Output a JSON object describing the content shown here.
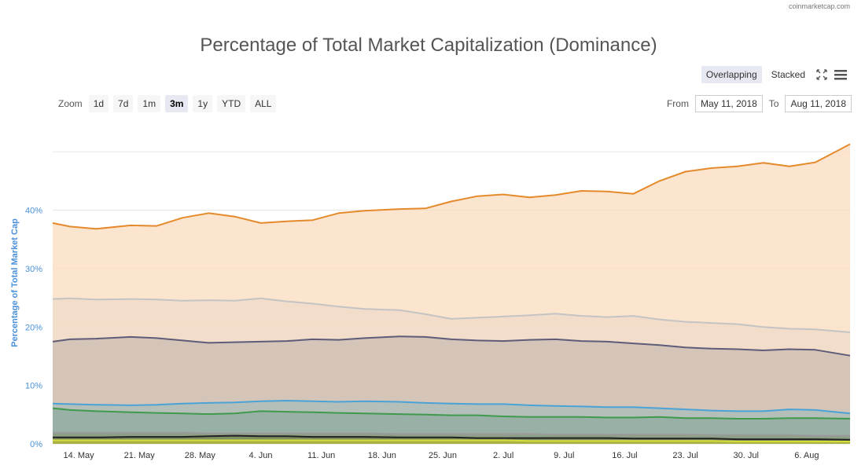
{
  "credit": "coinmarketcap.com",
  "view_modes": {
    "overlapping": "Overlapping",
    "stacked": "Stacked"
  },
  "icons": {
    "fullscreen": "fullscreen-icon",
    "menu": "hamburger-menu-icon"
  },
  "zoom": {
    "label": "Zoom",
    "options": [
      "1d",
      "7d",
      "1m",
      "3m",
      "1y",
      "YTD",
      "ALL"
    ],
    "selected": "3m"
  },
  "date_range": {
    "from_label": "From",
    "from_value": "May 11, 2018",
    "to_label": "To",
    "to_value": "Aug 11, 2018"
  },
  "colors": {
    "s0_line": "#e58a2c",
    "s0_fill": "#fbdcbd",
    "s1_line": "#c4c4c4",
    "s1_fill": "#eed9c7",
    "s2_line": "#5f5c7a",
    "s2_fill": "#cbbbb1",
    "s3_line": "#4aa3d6",
    "s3_fill": "#a9bdbb",
    "s4_line": "#3f9a4d",
    "s4_fill": "#8fab9e",
    "s5_line": "#9a9a9a",
    "s5_fill": "#8a9a7c",
    "s6_line": "#222222",
    "s6_fill": "#7a8a55",
    "s7_line": "#d6dc3a",
    "s7_fill": "#b8be3c",
    "grid": "#e6e6e6",
    "axis_text": "#4a90d9",
    "tick_text": "#333333"
  },
  "chart_data": {
    "type": "area",
    "title": "Percentage of Total Market Capitalization (Dominance)",
    "ylabel": "Percentage of Total Market Cap",
    "xlabel": "",
    "x_range": [
      "2018-05-11",
      "2018-08-11"
    ],
    "ylim": [
      0,
      55
    ],
    "y_ticks": [
      0,
      10,
      20,
      30,
      40
    ],
    "y_tick_labels": [
      "0%",
      "10%",
      "20%",
      "30%",
      "40%"
    ],
    "x_ticks": [
      "2018-05-14",
      "2018-05-21",
      "2018-05-28",
      "2018-06-04",
      "2018-06-11",
      "2018-06-18",
      "2018-06-25",
      "2018-07-02",
      "2018-07-09",
      "2018-07-16",
      "2018-07-23",
      "2018-07-30",
      "2018-08-06"
    ],
    "x_tick_labels": [
      "14. May",
      "21. May",
      "28. May",
      "4. Jun",
      "11. Jun",
      "18. Jun",
      "25. Jun",
      "2. Jul",
      "9. Jul",
      "16. Jul",
      "23. Jul",
      "30. Jul",
      "6. Aug"
    ],
    "grid": true,
    "legend": "none",
    "x": [
      "2018-05-11",
      "2018-05-13",
      "2018-05-16",
      "2018-05-20",
      "2018-05-23",
      "2018-05-26",
      "2018-05-29",
      "2018-06-01",
      "2018-06-04",
      "2018-06-07",
      "2018-06-10",
      "2018-06-13",
      "2018-06-16",
      "2018-06-20",
      "2018-06-23",
      "2018-06-26",
      "2018-06-29",
      "2018-07-02",
      "2018-07-05",
      "2018-07-08",
      "2018-07-11",
      "2018-07-14",
      "2018-07-17",
      "2018-07-20",
      "2018-07-23",
      "2018-07-26",
      "2018-07-29",
      "2018-08-01",
      "2018-08-04",
      "2018-08-07",
      "2018-08-11"
    ],
    "series": [
      {
        "values": [
          37.8,
          37.2,
          36.8,
          37.4,
          37.3,
          38.7,
          39.5,
          38.9,
          37.8,
          38.1,
          38.3,
          39.5,
          39.9,
          40.2,
          40.3,
          41.5,
          42.4,
          42.7,
          42.2,
          42.6,
          43.3,
          43.2,
          42.8,
          45.0,
          46.6,
          47.2,
          47.5,
          48.1,
          47.5,
          48.2,
          51.3
        ]
      },
      {
        "values": [
          24.8,
          24.9,
          24.7,
          24.8,
          24.7,
          24.5,
          24.6,
          24.5,
          24.9,
          24.4,
          24.0,
          23.5,
          23.1,
          22.9,
          22.2,
          21.4,
          21.6,
          21.8,
          22.0,
          22.3,
          21.9,
          21.7,
          21.9,
          21.3,
          20.9,
          20.7,
          20.5,
          20.0,
          19.7,
          19.6,
          19.1
        ]
      },
      {
        "values": [
          17.5,
          17.9,
          18.0,
          18.3,
          18.1,
          17.7,
          17.3,
          17.4,
          17.5,
          17.6,
          17.9,
          17.8,
          18.1,
          18.4,
          18.3,
          17.9,
          17.7,
          17.6,
          17.8,
          17.9,
          17.6,
          17.5,
          17.2,
          16.9,
          16.5,
          16.3,
          16.2,
          16.0,
          16.2,
          16.1,
          15.1
        ]
      },
      {
        "values": [
          6.9,
          6.8,
          6.7,
          6.6,
          6.7,
          6.9,
          7.0,
          7.1,
          7.3,
          7.4,
          7.3,
          7.2,
          7.3,
          7.2,
          7.0,
          6.9,
          6.8,
          6.8,
          6.6,
          6.5,
          6.4,
          6.3,
          6.3,
          6.1,
          5.9,
          5.7,
          5.6,
          5.6,
          5.9,
          5.8,
          5.2
        ]
      },
      {
        "values": [
          6.1,
          5.8,
          5.6,
          5.4,
          5.3,
          5.2,
          5.1,
          5.2,
          5.6,
          5.5,
          5.4,
          5.3,
          5.2,
          5.1,
          5.0,
          4.9,
          4.9,
          4.7,
          4.6,
          4.6,
          4.6,
          4.5,
          4.5,
          4.6,
          4.4,
          4.4,
          4.3,
          4.3,
          4.4,
          4.4,
          4.3
        ]
      },
      {
        "values": [
          1.9,
          1.9,
          1.9,
          1.9,
          1.9,
          1.9,
          1.8,
          1.8,
          1.8,
          1.8,
          1.8,
          1.8,
          1.8,
          1.7,
          1.7,
          1.7,
          1.7,
          1.7,
          1.7,
          1.6,
          1.6,
          1.6,
          1.6,
          1.6,
          1.6,
          1.5,
          1.5,
          1.5,
          1.5,
          1.4,
          1.4
        ]
      },
      {
        "values": [
          1.1,
          1.1,
          1.1,
          1.2,
          1.2,
          1.2,
          1.3,
          1.4,
          1.3,
          1.3,
          1.2,
          1.2,
          1.2,
          1.1,
          1.1,
          1.1,
          1.0,
          1.0,
          1.0,
          1.0,
          1.0,
          1.0,
          0.9,
          0.9,
          0.9,
          0.9,
          0.8,
          0.8,
          0.8,
          0.8,
          0.7
        ]
      },
      {
        "values": [
          0.6,
          0.6,
          0.6,
          0.6,
          0.6,
          0.6,
          0.6,
          0.6,
          0.6,
          0.6,
          0.6,
          0.6,
          0.6,
          0.6,
          0.6,
          0.6,
          0.6,
          0.6,
          0.5,
          0.5,
          0.5,
          0.5,
          0.5,
          0.5,
          0.5,
          0.5,
          0.4,
          0.4,
          0.4,
          0.4,
          0.4
        ]
      }
    ]
  }
}
